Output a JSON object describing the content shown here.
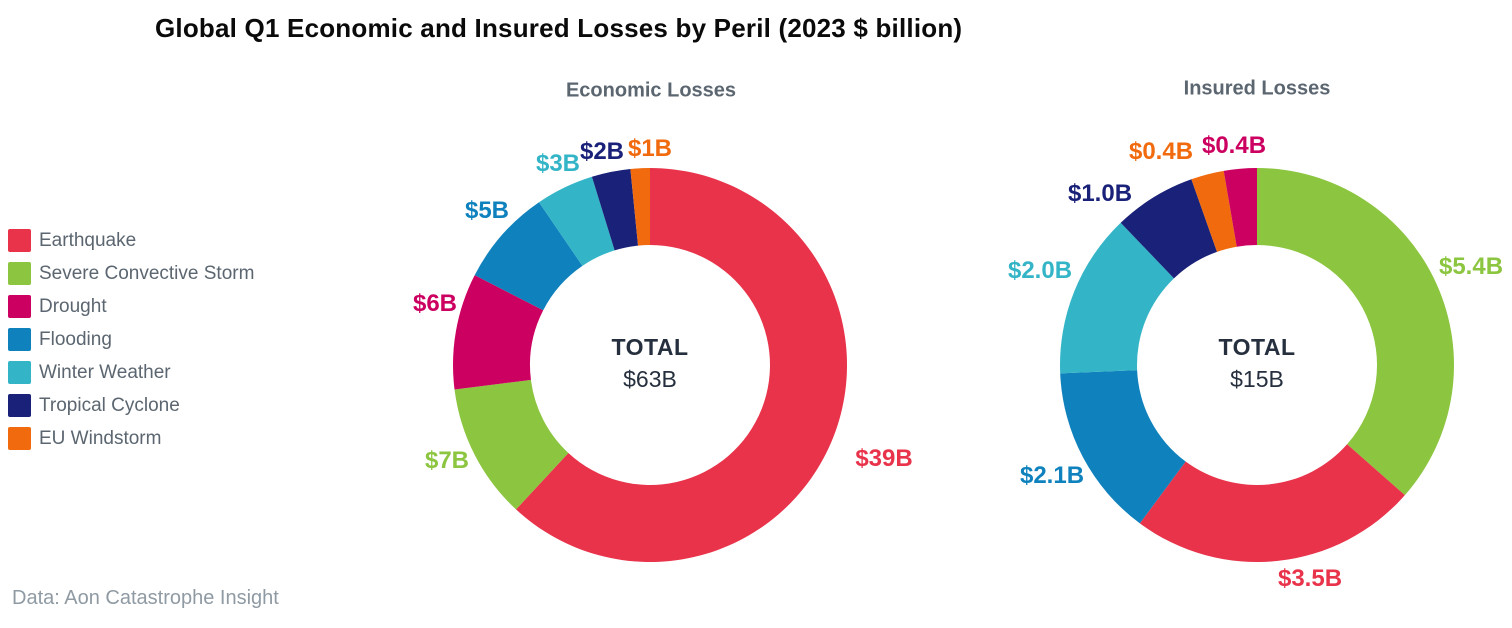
{
  "title": "Global Q1 Economic and Insured Losses by Peril (2023 $ billion)",
  "footer": "Data: Aon Catastrophe Insight",
  "colors": {
    "earthquake_red": "#E8334A",
    "severe_convective_storm_green": "#8CC540",
    "drought_magenta": "#CC0060",
    "flooding_blue": "#0F82BE",
    "winter_weather_teal": "#33B5C7",
    "tropical_cyclone_navy": "#1A2178",
    "eu_windstorm_orange": "#F16A0D",
    "subtitle_text": "#5B6670",
    "center_text": "#262F3E",
    "footer_text": "#8F9AA3"
  },
  "legend": {
    "items": [
      {
        "label": "Earthquake",
        "color": "#E8334A"
      },
      {
        "label": "Severe Convective Storm",
        "color": "#8CC540"
      },
      {
        "label": "Drought",
        "color": "#CC0060"
      },
      {
        "label": "Flooding",
        "color": "#0F82BE"
      },
      {
        "label": "Winter Weather",
        "color": "#33B5C7"
      },
      {
        "label": "Tropical Cyclone",
        "color": "#1A2178"
      },
      {
        "label": "EU Windstorm",
        "color": "#F16A0D"
      }
    ]
  },
  "chart_data": [
    {
      "type": "pie",
      "subtype": "donut",
      "title": "Economic Losses",
      "center_label": "TOTAL",
      "center_value": "$63B",
      "total_billion": 63,
      "units": "2023 $ billion",
      "start_angle_deg": 0,
      "direction": "clockwise",
      "segments": [
        {
          "category": "Earthquake",
          "value_billion": 39,
          "label": "$39B",
          "color": "#E8334A"
        },
        {
          "category": "Severe Convective Storm",
          "value_billion": 7,
          "label": "$7B",
          "color": "#8CC540"
        },
        {
          "category": "Drought",
          "value_billion": 6,
          "label": "$6B",
          "color": "#CC0060"
        },
        {
          "category": "Flooding",
          "value_billion": 5,
          "label": "$5B",
          "color": "#0F82BE"
        },
        {
          "category": "Winter Weather",
          "value_billion": 3,
          "label": "$3B",
          "color": "#33B5C7"
        },
        {
          "category": "Tropical Cyclone",
          "value_billion": 2,
          "label": "$2B",
          "color": "#1A2178"
        },
        {
          "category": "EU Windstorm",
          "value_billion": 1,
          "label": "$1B",
          "color": "#F16A0D"
        }
      ]
    },
    {
      "type": "pie",
      "subtype": "donut",
      "title": "Insured Losses",
      "center_label": "TOTAL",
      "center_value": "$15B",
      "total_billion": 15,
      "units": "2023 $ billion",
      "start_angle_deg": 0,
      "direction": "clockwise",
      "segments": [
        {
          "category": "Severe Convective Storm",
          "value_billion": 5.4,
          "label": "$5.4B",
          "color": "#8CC540"
        },
        {
          "category": "Earthquake",
          "value_billion": 3.5,
          "label": "$3.5B",
          "color": "#E8334A"
        },
        {
          "category": "Flooding",
          "value_billion": 2.1,
          "label": "$2.1B",
          "color": "#0F82BE"
        },
        {
          "category": "Winter Weather",
          "value_billion": 2.0,
          "label": "$2.0B",
          "color": "#33B5C7"
        },
        {
          "category": "Tropical Cyclone",
          "value_billion": 1.0,
          "label": "$1.0B",
          "color": "#1A2178"
        },
        {
          "category": "EU Windstorm",
          "value_billion": 0.4,
          "label": "$0.4B",
          "color": "#F16A0D"
        },
        {
          "category": "Drought",
          "value_billion": 0.4,
          "label": "$0.4B",
          "color": "#CC0060"
        }
      ]
    }
  ]
}
